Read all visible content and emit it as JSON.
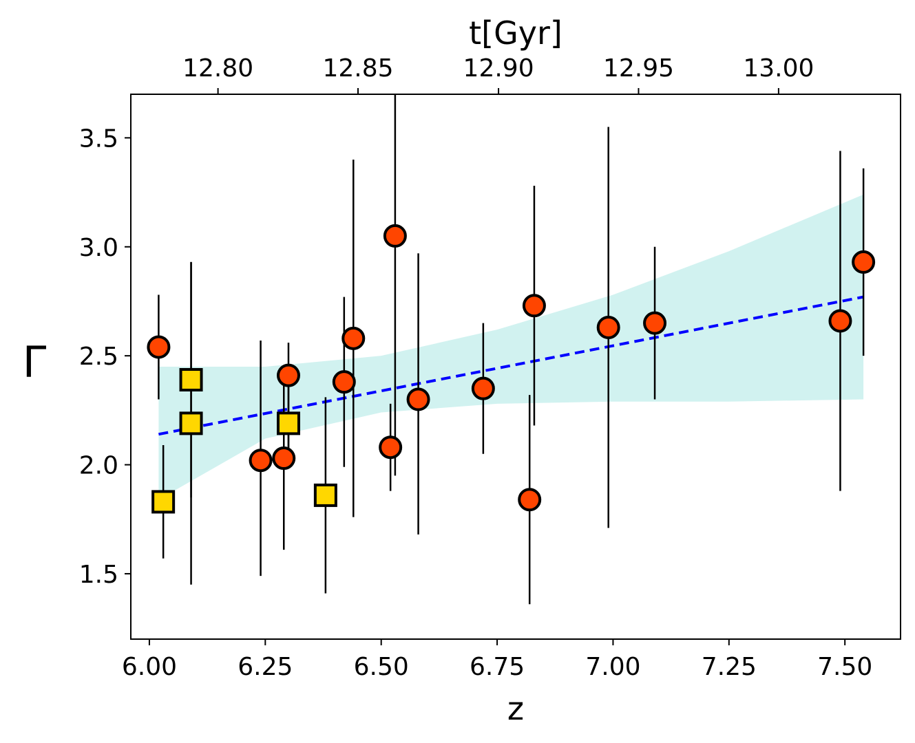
{
  "chart_data": {
    "type": "scatter",
    "xlabel": "z",
    "ylabel": "Γ",
    "top_xlabel": "t[Gyr]",
    "xlim": [
      5.96,
      7.62
    ],
    "ylim": [
      1.2,
      3.7
    ],
    "x_ticks": [
      "6.00",
      "6.25",
      "6.50",
      "6.75",
      "7.00",
      "7.25",
      "7.50"
    ],
    "y_ticks": [
      "1.5",
      "2.0",
      "2.5",
      "3.0",
      "3.5"
    ],
    "top_ticks": [
      {
        "label": "12.80",
        "z": 6.148
      },
      {
        "label": "12.85",
        "z": 6.45
      },
      {
        "label": "12.90",
        "z": 6.753
      },
      {
        "label": "12.95",
        "z": 7.055
      },
      {
        "label": "13.00",
        "z": 7.357
      }
    ],
    "grid": false,
    "series": [
      {
        "marker": "circle",
        "color": "#ff4500",
        "points": [
          {
            "x": 6.02,
            "y": 2.54,
            "ylo": 2.3,
            "yhi": 2.78
          },
          {
            "x": 6.24,
            "y": 2.02,
            "ylo": 1.49,
            "yhi": 2.57
          },
          {
            "x": 6.29,
            "y": 2.03,
            "ylo": 1.61,
            "yhi": 2.4
          },
          {
            "x": 6.3,
            "y": 2.41,
            "ylo": 2.05,
            "yhi": 2.56
          },
          {
            "x": 6.42,
            "y": 2.38,
            "ylo": 1.99,
            "yhi": 2.77
          },
          {
            "x": 6.44,
            "y": 2.58,
            "ylo": 1.76,
            "yhi": 3.4
          },
          {
            "x": 6.52,
            "y": 2.08,
            "ylo": 1.88,
            "yhi": 2.28
          },
          {
            "x": 6.53,
            "y": 3.05,
            "ylo": 1.95,
            "yhi": 3.7
          },
          {
            "x": 6.58,
            "y": 2.3,
            "ylo": 1.68,
            "yhi": 2.97
          },
          {
            "x": 6.72,
            "y": 2.35,
            "ylo": 2.05,
            "yhi": 2.65
          },
          {
            "x": 6.82,
            "y": 1.84,
            "ylo": 1.36,
            "yhi": 2.32
          },
          {
            "x": 6.83,
            "y": 2.73,
            "ylo": 2.18,
            "yhi": 3.28
          },
          {
            "x": 6.99,
            "y": 2.63,
            "ylo": 1.71,
            "yhi": 3.55
          },
          {
            "x": 7.09,
            "y": 2.65,
            "ylo": 2.3,
            "yhi": 3.0
          },
          {
            "x": 7.49,
            "y": 2.66,
            "ylo": 1.88,
            "yhi": 3.44
          },
          {
            "x": 7.54,
            "y": 2.93,
            "ylo": 2.5,
            "yhi": 3.36
          }
        ]
      },
      {
        "marker": "square",
        "color": "#ffd700",
        "points": [
          {
            "x": 6.03,
            "y": 1.83,
            "ylo": 1.57,
            "yhi": 2.09
          },
          {
            "x": 6.09,
            "y": 2.39,
            "ylo": 1.85,
            "yhi": 2.93
          },
          {
            "x": 6.09,
            "y": 2.19,
            "ylo": 1.45,
            "yhi": 2.93
          },
          {
            "x": 6.3,
            "y": 2.19,
            "ylo": 2.0,
            "yhi": 2.38
          },
          {
            "x": 6.38,
            "y": 1.86,
            "ylo": 1.41,
            "yhi": 2.31
          }
        ]
      }
    ],
    "fit_line": {
      "color": "#0000ff",
      "style": "dashed",
      "x": [
        6.02,
        7.54
      ],
      "y": [
        2.14,
        2.77
      ]
    },
    "confidence_band": {
      "color": "#d1f2f0",
      "x": [
        6.02,
        6.25,
        6.5,
        6.75,
        7.0,
        7.25,
        7.54
      ],
      "lower": [
        1.84,
        2.12,
        2.24,
        2.28,
        2.29,
        2.29,
        2.3
      ],
      "upper": [
        2.45,
        2.45,
        2.5,
        2.62,
        2.78,
        2.98,
        3.24
      ]
    }
  }
}
